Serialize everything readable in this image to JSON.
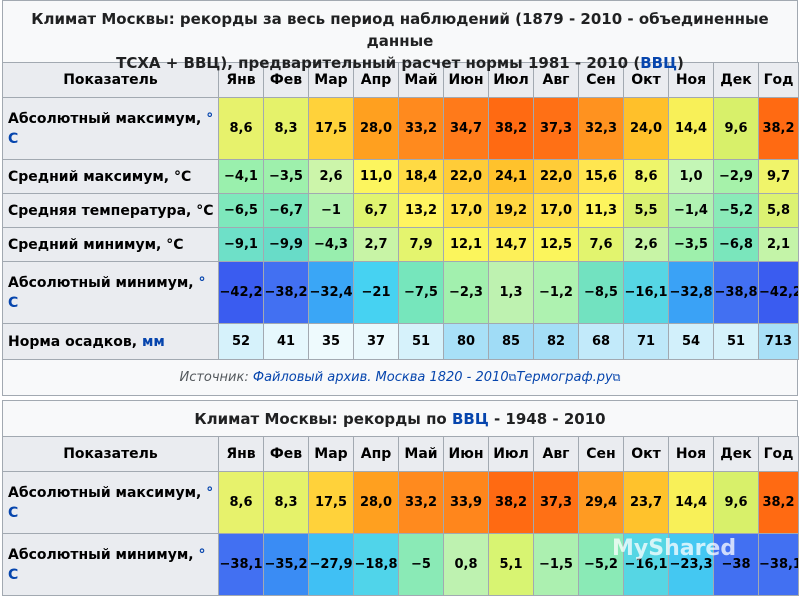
{
  "table1": {
    "title_line1": "Климат Москвы: рекорды за весь период наблюдений (1879 - 2010 - объединенные данные",
    "title_line2_a": "ТСХА + ВВЦ), предварительный расчет нормы 1981 - 2010 (",
    "title_line2_link": "ВВЦ",
    "title_line2_b": ")",
    "header": "Показатель",
    "months": [
      "Янв",
      "Фев",
      "Мар",
      "Апр",
      "Май",
      "Июн",
      "Июл",
      "Авг",
      "Сен",
      "Окт",
      "Ноя",
      "Дек",
      "Год"
    ],
    "rows": [
      {
        "label": "Абсолютный максимум, ",
        "unit": "° С",
        "values": [
          "8,6",
          "8,3",
          "17,5",
          "28,0",
          "33,2",
          "34,7",
          "38,2",
          "37,3",
          "32,3",
          "24,0",
          "14,4",
          "9,6",
          "38,2"
        ],
        "colors": [
          "#e7f26c",
          "#e5f26a",
          "#ffd23a",
          "#ffa01f",
          "#ff8a1e",
          "#ff7a1a",
          "#ff6a12",
          "#ff7015",
          "#ff921f",
          "#ffc02a",
          "#f8f058",
          "#d8f06a",
          "#ff6a12"
        ]
      },
      {
        "label": "Средний максимум, °С",
        "unit": "",
        "values": [
          "−4,1",
          "−3,5",
          "2,6",
          "11,0",
          "18,4",
          "22,0",
          "24,1",
          "22,0",
          "15,6",
          "8,6",
          "1,0",
          "−2,9",
          "9,7"
        ],
        "colors": [
          "#9af0ad",
          "#9ef0ac",
          "#ccf5aa",
          "#fcf55e",
          "#ffda44",
          "#ffcc38",
          "#ffc22c",
          "#ffcc38",
          "#ffe650",
          "#eef56a",
          "#c4f6b6",
          "#a6f2aa",
          "#f0f46a"
        ]
      },
      {
        "label": "Средняя температура, °С",
        "unit": "",
        "values": [
          "−6,5",
          "−6,7",
          "−1",
          "6,7",
          "13,2",
          "17,0",
          "19,2",
          "17,0",
          "11,3",
          "5,5",
          "−1,4",
          "−5,2",
          "5,8"
        ],
        "colors": [
          "#7ee8bc",
          "#7ce6bc",
          "#b2f2b0",
          "#e0f470",
          "#fff460",
          "#ffe04a",
          "#ffd640",
          "#ffe04a",
          "#fdf55e",
          "#d8f072",
          "#b0f2b2",
          "#8aeab8",
          "#dcf272"
        ]
      },
      {
        "label": "Средний минимум, °С",
        "unit": "",
        "values": [
          "−9,1",
          "−9,9",
          "−4,3",
          "2,7",
          "7,9",
          "12,1",
          "14,7",
          "12,5",
          "7,6",
          "2,6",
          "−3,5",
          "−6,8",
          "2,1"
        ],
        "colors": [
          "#6ee0c8",
          "#68dcc8",
          "#98eeae",
          "#c8f4a6",
          "#e4f46e",
          "#fbf55c",
          "#fdf058",
          "#fbf55c",
          "#e2f46e",
          "#c8f4a6",
          "#9ef0ac",
          "#7ae6bc",
          "#c4f4a8"
        ]
      },
      {
        "label": "Абсолютный минимум, ",
        "unit": "° С",
        "values": [
          "−42,2",
          "−38,2",
          "−32,4",
          "−21",
          "−7,5",
          "−2,3",
          "1,3",
          "−1,2",
          "−8,5",
          "−16,1",
          "−32,8",
          "−38,8",
          "−42,2"
        ],
        "colors": [
          "#3a5cf0",
          "#4270f2",
          "#3aa6f6",
          "#46d2f2",
          "#76e6bc",
          "#a2f0ae",
          "#bef2b0",
          "#aef2b0",
          "#72e2c0",
          "#56d6e4",
          "#3aa2f6",
          "#4270f2",
          "#3a5cf0"
        ]
      },
      {
        "label": "Норма осадков, ",
        "unit": "мм",
        "values": [
          "52",
          "41",
          "35",
          "37",
          "51",
          "80",
          "85",
          "82",
          "68",
          "71",
          "54",
          "51",
          "713"
        ],
        "colors": [
          "#d6f2fb",
          "#e6f8fd",
          "#eefafd",
          "#eaf9fd",
          "#d6f2fb",
          "#a8e0f7",
          "#a0dcf6",
          "#a4def6",
          "#c2eafa",
          "#bee8f9",
          "#d2f0fb",
          "#d6f2fb",
          "#a8e0f7"
        ]
      }
    ]
  },
  "source": {
    "prefix": "Источник: ",
    "link1": "Файловый архив. Москва 1820 - 2010",
    "link2": "Термограф.ру"
  },
  "table2": {
    "title_a": "Климат Москвы: рекорды по ",
    "title_link": "ВВЦ",
    "title_b": " - 1948 - 2010",
    "header": "Показатель",
    "months": [
      "Янв",
      "Фев",
      "Мар",
      "Апр",
      "Май",
      "Июн",
      "Июл",
      "Авг",
      "Сен",
      "Окт",
      "Ноя",
      "Дек",
      "Год"
    ],
    "rows": [
      {
        "label": "Абсолютный максимум, ",
        "unit": "° С",
        "values": [
          "8,6",
          "8,3",
          "17,5",
          "28,0",
          "33,2",
          "33,9",
          "38,2",
          "37,3",
          "29,4",
          "23,7",
          "14,4",
          "9,6",
          "38,2"
        ],
        "colors": [
          "#e7f26c",
          "#e5f26a",
          "#ffd23a",
          "#ffa01f",
          "#ff8a1e",
          "#ff861c",
          "#ff6a12",
          "#ff7015",
          "#ff9a22",
          "#ffc22c",
          "#f8f058",
          "#d8f06a",
          "#ff6a12"
        ]
      },
      {
        "label": "Абсолютный минимум, ",
        "unit": "° С",
        "values": [
          "−38,1",
          "−35,2",
          "−27,9",
          "−18,8",
          "−5",
          "0,8",
          "5,1",
          "−1,5",
          "−5,2",
          "−16,1",
          "−23,3",
          "−38",
          "−38,1"
        ],
        "colors": [
          "#4270f2",
          "#3a8cf4",
          "#40c0f4",
          "#50d4ea",
          "#8aeab6",
          "#bef2b0",
          "#d8f472",
          "#acf0b0",
          "#8aeab6",
          "#56d6e4",
          "#44c8f2",
          "#4270f2",
          "#4270f2"
        ]
      }
    ]
  },
  "watermark": "MyShared"
}
